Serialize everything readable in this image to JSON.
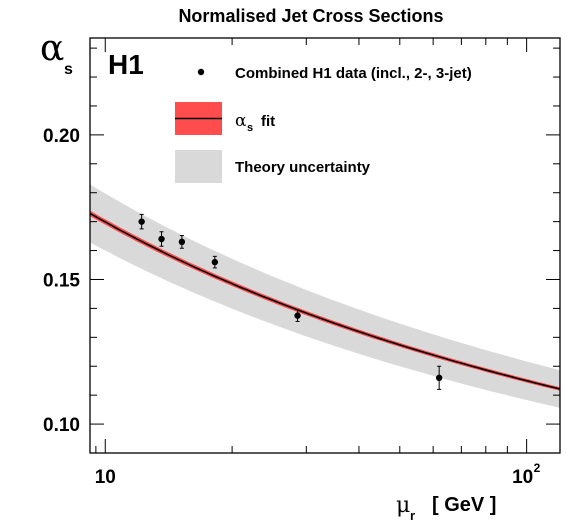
{
  "chart_data": {
    "type": "scatter",
    "title": "Normalised Jet Cross Sections",
    "experiment_label": "H1",
    "xlabel": {
      "symbol": "μ",
      "subscript": "r",
      "unit": "[ GeV ]"
    },
    "ylabel": {
      "symbol": "α",
      "subscript": "s"
    },
    "xscale": "log",
    "xlim": [
      9.2,
      120
    ],
    "ylim": [
      0.09,
      0.2335
    ],
    "x_ticklabels": [
      {
        "value": 10,
        "label": "10"
      },
      {
        "value": 100,
        "label": "10",
        "exponent": "2"
      }
    ],
    "y_ticks": [
      0.1,
      0.15,
      0.2
    ],
    "y_ticklabels": [
      "0.10",
      "0.15",
      "0.20"
    ],
    "legend": {
      "placement": "top-right",
      "entries": [
        {
          "key": "data",
          "label": "Combined H1 data (incl., 2-, 3-jet)"
        },
        {
          "key": "fit",
          "label_symbol": "α",
          "label_subscript": "s",
          "label_rest": "fit"
        },
        {
          "key": "theory",
          "label": "Theory uncertainty"
        }
      ]
    },
    "data_points": [
      {
        "x": 12.2,
        "y": 0.17,
        "err": 0.0025
      },
      {
        "x": 13.6,
        "y": 0.164,
        "err": 0.0025
      },
      {
        "x": 15.2,
        "y": 0.163,
        "err": 0.0022
      },
      {
        "x": 18.2,
        "y": 0.156,
        "err": 0.002
      },
      {
        "x": 28.6,
        "y": 0.1375,
        "err": 0.002
      },
      {
        "x": 62.0,
        "y": 0.116,
        "err": 0.004
      }
    ],
    "fit": {
      "alpha_s_mz": 0.1165,
      "mz": 91.19,
      "nf": 5,
      "fit_band_frac": 0.0055,
      "theory_band_frac": 0.058
    },
    "colors": {
      "fit_line": "#000000",
      "fit_band": "#ff4d4d",
      "theory_band": "#d9d9d9",
      "data": "#000000"
    },
    "grid": false
  }
}
